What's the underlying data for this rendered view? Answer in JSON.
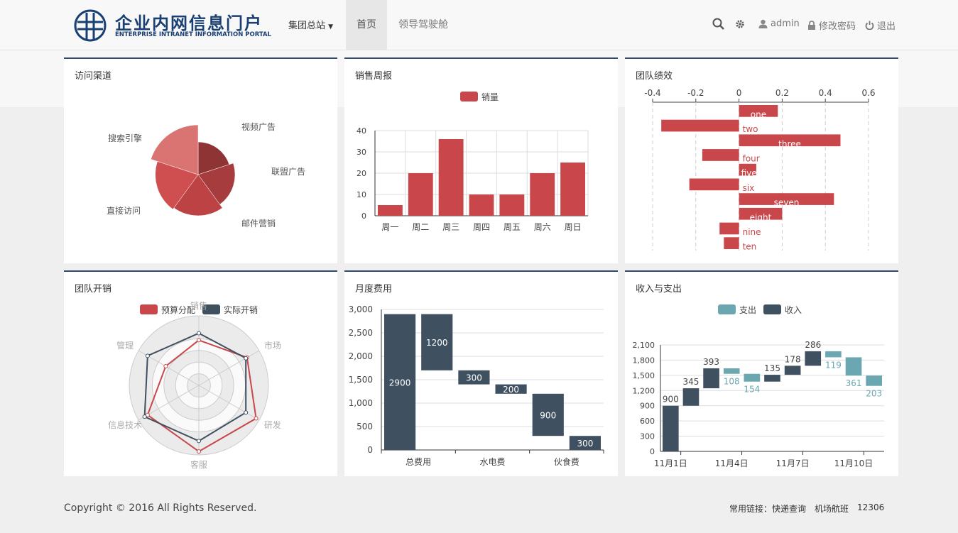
{
  "header": {
    "logo_cn": "企业内网信息门户",
    "logo_en": "ENTERPRISE INTRANET INFORMATION PORTAL",
    "site_select": "集团总站",
    "nav": [
      "首页",
      "领导驾驶舱"
    ],
    "user": "admin",
    "change_password": "修改密码",
    "logout": "退出"
  },
  "panels": {
    "visit": "访问渠道",
    "sales": "销售周报",
    "perf": "团队绩效",
    "spend": "团队开销",
    "monthly": "月度费用",
    "income": "收入与支出"
  },
  "footer": {
    "copyright": "Copyright © 2016 All Rights Reserved.",
    "links_label": "常用链接：",
    "links": [
      "快递查询",
      "机场航班",
      "12306"
    ]
  },
  "colors": {
    "red": "#c9474a",
    "dark": "#3f5060",
    "teal": "#6aa7b0",
    "navy": "#1a3f72"
  },
  "chart_data": [
    {
      "type": "pie",
      "subtype": "rose",
      "categories": [
        "视频广告",
        "联盟广告",
        "邮件营销",
        "直接访问",
        "搜索引擎"
      ],
      "values": [
        10,
        15,
        20,
        22,
        30
      ],
      "colors": [
        "#8f3435",
        "#a63c3d",
        "#bd4244",
        "#cf4e50",
        "#da7472"
      ]
    },
    {
      "type": "bar",
      "legend": [
        "销量"
      ],
      "categories": [
        "周一",
        "周二",
        "周三",
        "周四",
        "周五",
        "周六",
        "周日"
      ],
      "series": [
        {
          "name": "销量",
          "values": [
            5,
            20,
            36,
            10,
            10,
            20,
            25
          ]
        }
      ],
      "ylim": [
        0,
        40
      ],
      "yticks": [
        "0",
        "10",
        "20",
        "30",
        "40"
      ]
    },
    {
      "type": "bar",
      "orientation": "horizontal",
      "categories": [
        "one",
        "two",
        "three",
        "four",
        "five",
        "six",
        "seven",
        "eight",
        "nine",
        "ten"
      ],
      "values": [
        0.18,
        -0.36,
        0.47,
        -0.17,
        0.08,
        -0.23,
        0.44,
        0.2,
        -0.09,
        -0.07
      ],
      "xlim": [
        -0.4,
        0.6
      ],
      "xticks": [
        "-0.4",
        "-0.2",
        "0",
        "0.2",
        "0.4",
        "0.6"
      ]
    },
    {
      "type": "radar",
      "indicators": [
        "销售",
        "市场",
        "研发",
        "客服",
        "信息技术",
        "管理"
      ],
      "legend": [
        "预算分配",
        "实际开销"
      ],
      "series": [
        {
          "name": "预算分配",
          "values": [
            0.65,
            0.8,
            0.95,
            0.95,
            0.85,
            0.55
          ]
        },
        {
          "name": "实际开销",
          "values": [
            0.75,
            0.78,
            0.78,
            0.8,
            0.9,
            0.85
          ]
        }
      ]
    },
    {
      "type": "bar",
      "subtype": "waterfall",
      "categories": [
        "总费用",
        "",
        "水电费",
        "",
        "伙食费",
        ""
      ],
      "values": [
        2900,
        1200,
        300,
        200,
        900,
        300
      ],
      "bases": [
        0,
        1700,
        1400,
        1200,
        300,
        0
      ],
      "value_labels": [
        "2900",
        "1200",
        "300",
        "200",
        "900",
        "300"
      ],
      "ylim": [
        0,
        3000
      ],
      "yticks": [
        "0",
        "500",
        "1,000",
        "1,500",
        "2,000",
        "2,500",
        "3,000"
      ]
    },
    {
      "type": "bar",
      "subtype": "waterfall",
      "legend": [
        "支出",
        "收入"
      ],
      "x_labels": [
        "11月1日",
        "11月4日",
        "11月7日",
        "11月10日"
      ],
      "values": [
        900,
        345,
        393,
        -108,
        -154,
        135,
        178,
        286,
        -119,
        -361,
        -203
      ],
      "value_labels": [
        "900",
        "345",
        "393",
        "108",
        "154",
        "135",
        "178",
        "286",
        "119",
        "361",
        "203"
      ],
      "ylim": [
        0,
        2100
      ],
      "yticks": [
        "0",
        "300",
        "600",
        "900",
        "1,200",
        "1,500",
        "1,800",
        "2,100"
      ]
    }
  ]
}
